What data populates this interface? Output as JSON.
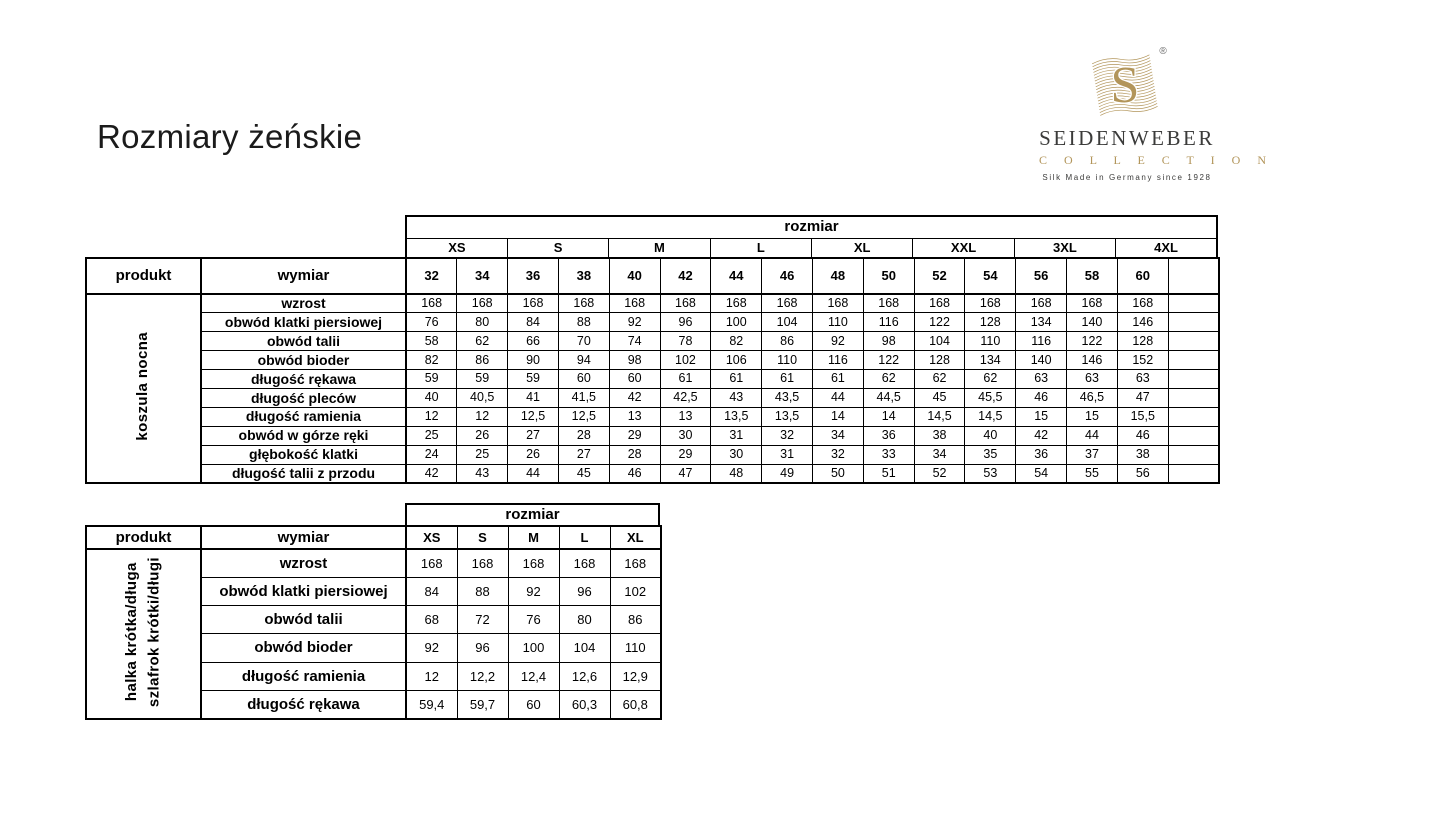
{
  "page": {
    "title": "Rozmiary żeńskie"
  },
  "logo": {
    "brand": "SEIDENWEBER",
    "collection": "C O L L E C T I O N",
    "tagline": "Silk Made in Germany since 1928",
    "registered": "®",
    "monogram": "S",
    "gold": "#b2955a",
    "dark": "#3b3b3a"
  },
  "tables": [
    {
      "id": "koszula-nocna",
      "rozmiar_label": "rozmiar",
      "produkt_label": "produkt",
      "wymiar_label": "wymiar",
      "product_lines": [
        "koszula nocna"
      ],
      "size_groups": [
        "XS",
        "S",
        "M",
        "L",
        "XL",
        "XXL",
        "3XL",
        "4XL"
      ],
      "size_numbers": [
        "32",
        "34",
        "36",
        "38",
        "40",
        "42",
        "44",
        "46",
        "48",
        "50",
        "52",
        "54",
        "56",
        "58",
        "60",
        ""
      ],
      "rows": [
        {
          "label": "wzrost",
          "values": [
            "168",
            "168",
            "168",
            "168",
            "168",
            "168",
            "168",
            "168",
            "168",
            "168",
            "168",
            "168",
            "168",
            "168",
            "168",
            ""
          ]
        },
        {
          "label": "obwód klatki piersiowej",
          "values": [
            "76",
            "80",
            "84",
            "88",
            "92",
            "96",
            "100",
            "104",
            "110",
            "116",
            "122",
            "128",
            "134",
            "140",
            "146",
            ""
          ]
        },
        {
          "label": "obwód talii",
          "values": [
            "58",
            "62",
            "66",
            "70",
            "74",
            "78",
            "82",
            "86",
            "92",
            "98",
            "104",
            "110",
            "116",
            "122",
            "128",
            ""
          ]
        },
        {
          "label": "obwód bioder",
          "values": [
            "82",
            "86",
            "90",
            "94",
            "98",
            "102",
            "106",
            "110",
            "116",
            "122",
            "128",
            "134",
            "140",
            "146",
            "152",
            ""
          ]
        },
        {
          "label": "długość rękawa",
          "values": [
            "59",
            "59",
            "59",
            "60",
            "60",
            "61",
            "61",
            "61",
            "61",
            "62",
            "62",
            "62",
            "63",
            "63",
            "63",
            ""
          ]
        },
        {
          "label": "długość pleców",
          "values": [
            "40",
            "40,5",
            "41",
            "41,5",
            "42",
            "42,5",
            "43",
            "43,5",
            "44",
            "44,5",
            "45",
            "45,5",
            "46",
            "46,5",
            "47",
            ""
          ]
        },
        {
          "label": "długość ramienia",
          "values": [
            "12",
            "12",
            "12,5",
            "12,5",
            "13",
            "13",
            "13,5",
            "13,5",
            "14",
            "14",
            "14,5",
            "14,5",
            "15",
            "15",
            "15,5",
            ""
          ]
        },
        {
          "label": "obwód w górze ręki",
          "values": [
            "25",
            "26",
            "27",
            "28",
            "29",
            "30",
            "31",
            "32",
            "34",
            "36",
            "38",
            "40",
            "42",
            "44",
            "46",
            ""
          ]
        },
        {
          "label": "głębokość klatki",
          "values": [
            "24",
            "25",
            "26",
            "27",
            "28",
            "29",
            "30",
            "31",
            "32",
            "33",
            "34",
            "35",
            "36",
            "37",
            "38",
            ""
          ]
        },
        {
          "label": "długość talii z przodu",
          "values": [
            "42",
            "43",
            "44",
            "45",
            "46",
            "47",
            "48",
            "49",
            "50",
            "51",
            "52",
            "53",
            "54",
            "55",
            "56",
            ""
          ]
        }
      ]
    },
    {
      "id": "halka-szlafrok",
      "rozmiar_label": "rozmiar",
      "produkt_label": "produkt",
      "wymiar_label": "wymiar",
      "product_lines": [
        "halka krótka/długa",
        "szlafrok krótki/długi"
      ],
      "size_headers": [
        "XS",
        "S",
        "M",
        "L",
        "XL"
      ],
      "rows": [
        {
          "label": "wzrost",
          "values": [
            "168",
            "168",
            "168",
            "168",
            "168"
          ]
        },
        {
          "label": "obwód klatki piersiowej",
          "values": [
            "84",
            "88",
            "92",
            "96",
            "102"
          ]
        },
        {
          "label": "obwód talii",
          "values": [
            "68",
            "72",
            "76",
            "80",
            "86"
          ]
        },
        {
          "label": "obwód bioder",
          "values": [
            "92",
            "96",
            "100",
            "104",
            "110"
          ]
        },
        {
          "label": "długość ramienia",
          "values": [
            "12",
            "12,2",
            "12,4",
            "12,6",
            "12,9"
          ]
        },
        {
          "label": "długość rękawa",
          "values": [
            "59,4",
            "59,7",
            "60",
            "60,3",
            "60,8"
          ]
        }
      ]
    }
  ]
}
